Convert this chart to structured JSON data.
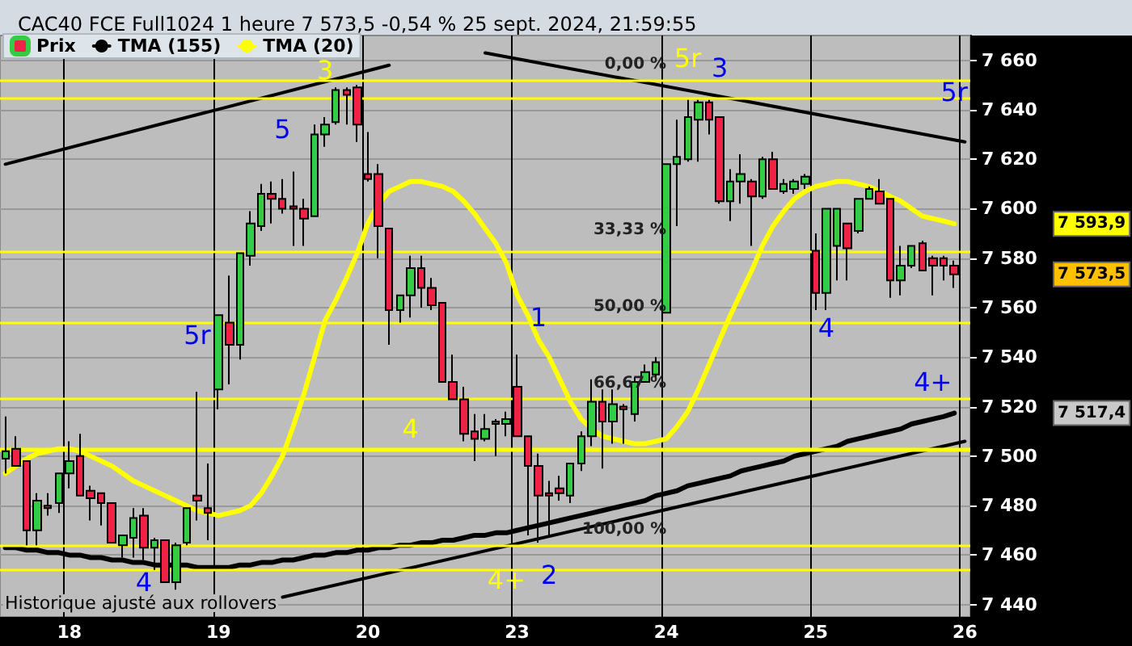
{
  "chart_data": {
    "type": "candlestick",
    "title": "CAC40 FCE Full1024 1 heure 7 573,5 -0,54 % 25 sept. 2024, 21:59:55",
    "categories": [
      null,
      null,
      null,
      null,
      null,
      null,
      "18",
      null,
      null,
      null,
      null,
      null,
      null,
      null,
      null,
      null,
      null,
      null,
      null,
      null,
      "19",
      null,
      null,
      null,
      null,
      null,
      null,
      null,
      null,
      null,
      null,
      null,
      null,
      null,
      "20",
      null,
      null,
      null,
      null,
      null,
      null,
      null,
      null,
      null,
      null,
      null,
      null,
      null,
      "23",
      null,
      null,
      null,
      null,
      null,
      null,
      null,
      null,
      null,
      null,
      null,
      null,
      null,
      "24",
      null,
      null,
      null,
      null,
      null,
      null,
      null,
      null,
      null,
      null,
      null,
      null,
      null,
      "25",
      null,
      null,
      null,
      null,
      null,
      null,
      null,
      null,
      null,
      null,
      null,
      null,
      null,
      "26"
    ],
    "series": [
      {
        "name": "Prix",
        "colors": [
          "#33cc44",
          "#ee2244",
          "#ee2244",
          "#33cc44",
          "#ee2244",
          "#33cc44",
          "#33cc44",
          "#ee2244",
          "#ee2244",
          "#ee2244",
          "#ee2244",
          "#33cc44",
          "#33cc44",
          "#ee2244",
          "#33cc44",
          "#ee2244",
          "#33cc44",
          "#33cc44",
          "#ee2244",
          "#ee2244",
          "#33cc44",
          "#ee2244",
          "#33cc44",
          "#33cc44",
          "#33cc44",
          "#ee2244",
          "#ee2244",
          "#ee2244",
          "#ee2244",
          "#33cc44",
          "#33cc44",
          "#33cc44",
          "#ee2244",
          "#ee2244",
          "#ee2244",
          "#ee2244",
          "#ee2244",
          "#33cc44",
          "#33cc44",
          "#ee2244",
          "#ee2244",
          "#ee2244",
          "#ee2244",
          "#ee2244",
          "#ee2244",
          "#33cc44",
          "#ee2244",
          "#33cc44",
          "#ee2244",
          "#ee2244",
          "#ee2244",
          "#ee2244",
          "#ee2244",
          "#33cc44",
          "#33cc44",
          "#33cc44",
          "#ee2244",
          "#33cc44",
          "#ee2244",
          "#33cc44",
          "#33cc44",
          "#33cc44",
          "#33cc44",
          "#33cc44",
          "#33cc44",
          "#33cc44",
          "#ee2244",
          "#ee2244",
          "#33cc44",
          "#33cc44",
          "#ee2244",
          "#33cc44",
          "#ee2244",
          "#33cc44",
          "#33cc44",
          "#33cc44",
          "#ee2244",
          "#33cc44",
          "#33cc44",
          "#ee2244",
          "#33cc44",
          "#33cc44",
          "#ee2244",
          "#ee2244",
          "#33cc44",
          "#33cc44",
          "#ee2244",
          "#ee2244",
          "#ee2244",
          "#ee2244",
          null
        ],
        "ohlc": [
          [
            7499,
            7516,
            7493,
            7502
          ],
          [
            7503,
            7508,
            7496,
            7496
          ],
          [
            7498,
            7498,
            7464,
            7470
          ],
          [
            7470,
            7485,
            7464,
            7482
          ],
          [
            7480,
            7485,
            7476,
            7479
          ],
          [
            7481,
            7493,
            7477,
            7493
          ],
          [
            7493,
            7506,
            7487,
            7498
          ],
          [
            7500,
            7509,
            7484,
            7484
          ],
          [
            7486,
            7488,
            7474,
            7483
          ],
          [
            7485,
            7485,
            7472,
            7481
          ],
          [
            7481,
            7481,
            7465,
            7465
          ],
          [
            7464,
            7468,
            7459,
            7468
          ],
          [
            7467,
            7479,
            7459,
            7475
          ],
          [
            7476,
            7479,
            7458,
            7463
          ],
          [
            7463,
            7467,
            7454,
            7466
          ],
          [
            7466,
            7466,
            7449,
            7449
          ],
          [
            7449,
            7465,
            7446,
            7464
          ],
          [
            7465,
            7479,
            7464,
            7479
          ],
          [
            7484,
            7526,
            7474,
            7482
          ],
          [
            7479,
            7497,
            7466,
            7477
          ],
          [
            7527,
            7557,
            7519,
            7557
          ],
          [
            7554,
            7573,
            7529,
            7545
          ],
          [
            7545,
            7582,
            7539,
            7582
          ],
          [
            7581,
            7599,
            7577,
            7594
          ],
          [
            7593,
            7610,
            7591,
            7606
          ],
          [
            7606,
            7611,
            7594,
            7604
          ],
          [
            7604,
            7612,
            7598,
            7600
          ],
          [
            7601,
            7615,
            7585,
            7600
          ],
          [
            7600,
            7604,
            7585,
            7596
          ],
          [
            7597,
            7634,
            7597,
            7630
          ],
          [
            7630,
            7637,
            7625,
            7634
          ],
          [
            7635,
            7649,
            7634,
            7648
          ],
          [
            7648,
            7649,
            7634,
            7646
          ],
          [
            7649,
            7650,
            7627,
            7634
          ],
          [
            7614,
            7631,
            7611,
            7612
          ],
          [
            7614,
            7618,
            7580,
            7593
          ],
          [
            7592,
            7592,
            7545,
            7559
          ],
          [
            7559,
            7565,
            7554,
            7565
          ],
          [
            7565,
            7581,
            7556,
            7576
          ],
          [
            7576,
            7581,
            7560,
            7568
          ],
          [
            7568,
            7572,
            7559,
            7561
          ],
          [
            7562,
            7562,
            7530,
            7530
          ],
          [
            7530,
            7541,
            7523,
            7523
          ],
          [
            7523,
            7528,
            7506,
            7509
          ],
          [
            7510,
            7517,
            7498,
            7507
          ],
          [
            7507,
            7517,
            7506,
            7511
          ],
          [
            7514,
            7515,
            7500,
            7513
          ],
          [
            7513,
            7518,
            7508,
            7515
          ],
          [
            7528,
            7541,
            7508,
            7508
          ],
          [
            7508,
            7508,
            7468,
            7496
          ],
          [
            7496,
            7501,
            7465,
            7484
          ],
          [
            7485,
            7490,
            7467,
            7484
          ],
          [
            7487,
            7492,
            7482,
            7485
          ],
          [
            7484,
            7497,
            7481,
            7497
          ],
          [
            7497,
            7510,
            7494,
            7508
          ],
          [
            7508,
            7531,
            7504,
            7522
          ],
          [
            7522,
            7527,
            7495,
            7514
          ],
          [
            7514,
            7527,
            7505,
            7521
          ],
          [
            7520,
            7521,
            7505,
            7519
          ],
          [
            7517,
            7532,
            7514,
            7530
          ],
          [
            7530,
            7537,
            7530,
            7534
          ],
          [
            7533,
            7540,
            7532,
            7538
          ],
          [
            7558,
            7618,
            7558,
            7618
          ],
          [
            7618,
            7636,
            7593,
            7621
          ],
          [
            7620,
            7644,
            7619,
            7637
          ],
          [
            7636,
            7644,
            7619,
            7643
          ],
          [
            7643,
            7644,
            7630,
            7636
          ],
          [
            7637,
            7637,
            7602,
            7603
          ],
          [
            7603,
            7616,
            7595,
            7611
          ],
          [
            7611,
            7622,
            7602,
            7614
          ],
          [
            7611,
            7612,
            7585,
            7605
          ],
          [
            7605,
            7621,
            7604,
            7620
          ],
          [
            7620,
            7623,
            7608,
            7608
          ],
          [
            7607,
            7612,
            7606,
            7610
          ],
          [
            7608,
            7612,
            7606,
            7611
          ],
          [
            7610,
            7614,
            7608,
            7613
          ],
          [
            7583,
            7590,
            7559,
            7566
          ],
          [
            7566,
            7600,
            7559,
            7600
          ],
          [
            7585,
            7600,
            7571,
            7600
          ],
          [
            7594,
            7594,
            7571,
            7584
          ],
          [
            7591,
            7604,
            7590,
            7604
          ],
          [
            7604,
            7609,
            7604,
            7608
          ],
          [
            7607,
            7612,
            7602,
            7602
          ],
          [
            7604,
            7604,
            7564,
            7571
          ],
          [
            7571,
            7585,
            7565,
            7577
          ],
          [
            7577,
            7585,
            7576,
            7585
          ],
          [
            7586,
            7587,
            7575,
            7575
          ],
          [
            7580,
            7581,
            7565,
            7577
          ],
          [
            7580,
            7581,
            7571,
            7577
          ],
          [
            7577,
            7579,
            7568,
            7573.5
          ],
          null
        ]
      },
      {
        "name": "TMA (155)",
        "type": "line",
        "color": "#000000",
        "values": [
          7463,
          7463,
          7462,
          7462,
          7461,
          7461,
          7460,
          7460,
          7459,
          7459,
          7458,
          7458,
          7457,
          7457,
          7456,
          7456,
          7456,
          7456,
          7455,
          7455,
          7455,
          7455,
          7456,
          7456,
          7457,
          7457,
          7458,
          7458,
          7459,
          7460,
          7460,
          7461,
          7461,
          7462,
          7462,
          7463,
          7463,
          7464,
          7464,
          7465,
          7465,
          7466,
          7466,
          7467,
          7468,
          7468,
          7469,
          7469,
          7470,
          7471,
          7472,
          7473,
          7474,
          7475,
          7476,
          7477,
          7478,
          7479,
          7480,
          7481,
          7482,
          7484,
          7485,
          7486,
          7488,
          7489,
          7490,
          7491,
          7492,
          7494,
          7495,
          7496,
          7497,
          7498,
          7500,
          7501,
          7502,
          7503,
          7504,
          7506,
          7507,
          7508,
          7509,
          7510,
          7511,
          7513,
          7514,
          7515,
          7516,
          7517.4,
          null
        ]
      },
      {
        "name": "TMA (20)",
        "type": "line",
        "color": "#ffff00",
        "values": [
          7493,
          7496,
          7499,
          7501,
          7502,
          7503,
          7503,
          7502,
          7500,
          7498,
          7496,
          7493,
          7490,
          7488,
          7486,
          7484,
          7482,
          7480,
          7478,
          7477,
          7476,
          7477,
          7478,
          7480,
          7485,
          7492,
          7500,
          7512,
          7525,
          7540,
          7555,
          7563,
          7572,
          7582,
          7594,
          7602,
          7607,
          7609,
          7611,
          7611,
          7610,
          7609,
          7607,
          7603,
          7598,
          7592,
          7586,
          7578,
          7565,
          7557,
          7547,
          7540,
          7531,
          7522,
          7515,
          7511,
          7508,
          7507,
          7506,
          7505,
          7505,
          7506,
          7507,
          7512,
          7518,
          7527,
          7537,
          7547,
          7557,
          7566,
          7575,
          7585,
          7593,
          7599,
          7604,
          7607,
          7609,
          7610,
          7611,
          7611,
          7610,
          7609,
          7607,
          7605,
          7603,
          7600,
          7597,
          7596,
          7595,
          7593.9,
          null
        ]
      },
      {
        "type": "line",
        "color": "#000000",
        "values": [
          7618,
          null,
          null,
          null,
          null,
          null,
          null,
          null,
          null,
          null,
          null,
          null,
          null,
          null,
          null,
          null,
          null,
          null,
          null,
          null,
          null,
          null,
          null,
          null,
          null,
          null,
          null,
          null,
          null,
          null,
          null,
          null,
          null,
          null,
          null,
          null,
          7658,
          null,
          null,
          null,
          null,
          null,
          null,
          null,
          null,
          null,
          null,
          null,
          null,
          null,
          null,
          null,
          null,
          null,
          null,
          null,
          null,
          null,
          null,
          null,
          null,
          null,
          null,
          null,
          null,
          null,
          null,
          null,
          null,
          null,
          null,
          null,
          null,
          null,
          null,
          null,
          null,
          null,
          null,
          null,
          null,
          null,
          null,
          null,
          null,
          null,
          null,
          null,
          null,
          null,
          null
        ]
      },
      {
        "type": "line",
        "color": "#000000",
        "values": [
          null,
          null,
          null,
          null,
          null,
          null,
          null,
          null,
          null,
          null,
          null,
          null,
          null,
          null,
          null,
          null,
          null,
          null,
          null,
          null,
          null,
          null,
          null,
          null,
          null,
          null,
          null,
          null,
          null,
          null,
          null,
          null,
          null,
          null,
          null,
          null,
          null,
          null,
          null,
          null,
          null,
          null,
          null,
          null,
          null,
          7663,
          null,
          null,
          null,
          null,
          null,
          null,
          null,
          null,
          null,
          null,
          null,
          null,
          null,
          null,
          null,
          null,
          null,
          null,
          null,
          null,
          null,
          null,
          null,
          null,
          null,
          null,
          null,
          null,
          null,
          null,
          null,
          null,
          null,
          null,
          null,
          null,
          null,
          null,
          null,
          null,
          null,
          null,
          null,
          null,
          7627
        ]
      },
      {
        "type": "line",
        "color": "#000000",
        "values": [
          null,
          null,
          null,
          null,
          null,
          null,
          null,
          null,
          null,
          null,
          null,
          null,
          null,
          null,
          null,
          null,
          null,
          null,
          null,
          null,
          null,
          null,
          null,
          null,
          null,
          null,
          7443,
          null,
          null,
          null,
          null,
          null,
          null,
          null,
          null,
          null,
          null,
          null,
          null,
          null,
          null,
          null,
          null,
          null,
          null,
          null,
          null,
          null,
          null,
          null,
          null,
          null,
          null,
          null,
          null,
          null,
          null,
          null,
          null,
          null,
          null,
          null,
          null,
          null,
          null,
          null,
          null,
          null,
          null,
          null,
          null,
          null,
          null,
          null,
          null,
          null,
          null,
          null,
          null,
          null,
          null,
          null,
          null,
          null,
          null,
          null,
          null,
          null,
          null,
          null,
          7506
        ]
      }
    ],
    "ylim": [
      7435,
      7670
    ],
    "yticks": [
      {
        "value": 7440,
        "label": "7 440"
      },
      {
        "value": 7460,
        "label": "7 460"
      },
      {
        "value": 7480,
        "label": "7 480"
      },
      {
        "value": 7500,
        "label": "7 500"
      },
      {
        "value": 7520,
        "label": "7 520"
      },
      {
        "value": 7540,
        "label": "7 540"
      },
      {
        "value": 7560,
        "label": "7 560"
      },
      {
        "value": 7580,
        "label": "7 580"
      },
      {
        "value": 7600,
        "label": "7 600"
      },
      {
        "value": 7620,
        "label": "7 620"
      },
      {
        "value": 7640,
        "label": "7 640"
      },
      {
        "value": 7660,
        "label": "7 660"
      }
    ],
    "ref_lines": [
      {
        "axis": "y",
        "value": 7652,
        "color": "#ffff00"
      },
      {
        "axis": "y",
        "value": 7645,
        "color": "#ffff00"
      },
      {
        "axis": "y",
        "value": 7583,
        "color": "#ffff00"
      },
      {
        "axis": "y",
        "value": 7554,
        "color": "#ffff00"
      },
      {
        "axis": "y",
        "value": 7523,
        "color": "#ffff00"
      },
      {
        "axis": "y",
        "value": 7503,
        "color": "#ffff00"
      },
      {
        "axis": "y",
        "value": 7464,
        "color": "#ffff00"
      },
      {
        "axis": "y",
        "value": 7454,
        "color": "#ffff00"
      }
    ],
    "annotations": [
      "Historique ajusté aux rollovers",
      "3",
      "5",
      "5r",
      "4",
      "4",
      "1",
      "4+",
      "2",
      "5r",
      "3",
      "4",
      "4+",
      "5r",
      "0,00 %",
      "33,33 %",
      "50,00 %",
      "66,67 %",
      "100,00 %",
      "7 593,9",
      "7 573,5",
      "7 517,4"
    ],
    "legend": "top left",
    "grid": true
  }
}
